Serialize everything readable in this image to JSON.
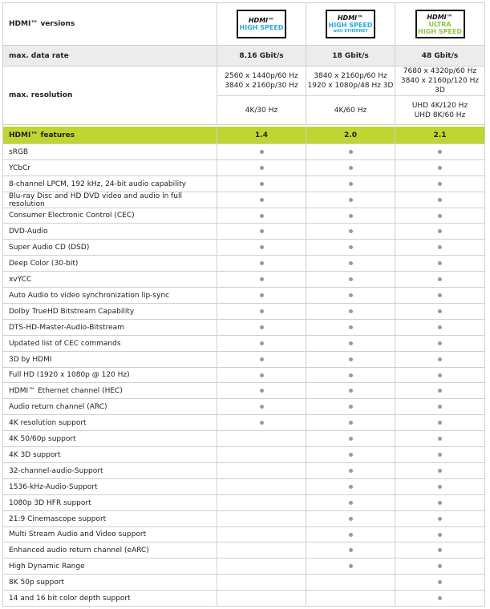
{
  "header": {
    "label": "HDMI™ versions",
    "logos": [
      {
        "brand": "HDMI™",
        "lines": [
          "HIGH SPEED"
        ]
      },
      {
        "brand": "HDMI™",
        "lines": [
          "HIGH SPEED",
          "with ETHERNET"
        ]
      },
      {
        "brand": "HDMI™",
        "lines": [
          "ULTRA",
          "HIGH SPEED"
        ]
      }
    ]
  },
  "data_rate": {
    "label": "max. data rate",
    "values": [
      "8.16 Gbit/s",
      "18 Gbit/s",
      "48 Gbit/s"
    ]
  },
  "resolution": {
    "label": "max. resolution",
    "top": [
      [
        "2560 x 1440p/60 Hz",
        "3840 x 2160p/30 Hz"
      ],
      [
        "3840 x 2160p/60 Hz",
        "1920 x 1080p/48 Hz 3D"
      ],
      [
        "7680 x 4320p/60 Hz",
        "3840 x 2160p/120 Hz 3D"
      ]
    ],
    "bottom": [
      [
        "4K/30 Hz"
      ],
      [
        "4K/60 Hz"
      ],
      [
        "UHD 4K/120 Hz",
        "UHD 8K/60 Hz"
      ]
    ]
  },
  "features_header": {
    "label": "HDMI™ features",
    "versions": [
      "1.4",
      "2.0",
      "2.1"
    ]
  },
  "features": [
    {
      "name": "sRGB",
      "support": [
        true,
        true,
        true
      ]
    },
    {
      "name": "YCbCr",
      "support": [
        true,
        true,
        true
      ]
    },
    {
      "name": "8-channel LPCM, 192 kHz, 24-bit audio capability",
      "support": [
        true,
        true,
        true
      ]
    },
    {
      "name": "Blu-ray Disc and HD DVD video and audio in full resolution",
      "support": [
        true,
        true,
        true
      ]
    },
    {
      "name": "Consumer Electronic Control (CEC)",
      "support": [
        true,
        true,
        true
      ]
    },
    {
      "name": "DVD-Audio",
      "support": [
        true,
        true,
        true
      ]
    },
    {
      "name": "Super Audio CD (DSD)",
      "support": [
        true,
        true,
        true
      ]
    },
    {
      "name": "Deep Color (30-bit)",
      "support": [
        true,
        true,
        true
      ]
    },
    {
      "name": "xvYCC",
      "support": [
        true,
        true,
        true
      ]
    },
    {
      "name": "Auto Audio to video synchronization lip-sync",
      "support": [
        true,
        true,
        true
      ]
    },
    {
      "name": "Dolby TrueHD Bitstream Capability",
      "support": [
        true,
        true,
        true
      ]
    },
    {
      "name": "DTS-HD-Master-Audio-Bitstream",
      "support": [
        true,
        true,
        true
      ]
    },
    {
      "name": "Updated list of CEC commands",
      "support": [
        true,
        true,
        true
      ]
    },
    {
      "name": "3D by HDMI",
      "support": [
        true,
        true,
        true
      ]
    },
    {
      "name": "Full HD (1920 x 1080p @ 120 Hz)",
      "support": [
        true,
        true,
        true
      ]
    },
    {
      "name": "HDMI™ Ethernet channel (HEC)",
      "support": [
        true,
        true,
        true
      ]
    },
    {
      "name": "Audio return channel (ARC)",
      "support": [
        true,
        true,
        true
      ]
    },
    {
      "name": "4K resolution support",
      "support": [
        true,
        true,
        true
      ]
    },
    {
      "name": "4K 50/60p support",
      "support": [
        false,
        true,
        true
      ]
    },
    {
      "name": "4K 3D support",
      "support": [
        false,
        true,
        true
      ]
    },
    {
      "name": "32-channel-audio-Support",
      "support": [
        false,
        true,
        true
      ]
    },
    {
      "name": "1536-kHz-Audio-Support",
      "support": [
        false,
        true,
        true
      ]
    },
    {
      "name": "1080p 3D HFR support",
      "support": [
        false,
        true,
        true
      ]
    },
    {
      "name": "21:9 Cinemascope support",
      "support": [
        false,
        true,
        true
      ]
    },
    {
      "name": "Multi Stream Audio and Video support",
      "support": [
        false,
        true,
        true
      ]
    },
    {
      "name": "Enhanced audio return channel (eARC)",
      "support": [
        false,
        true,
        true
      ]
    },
    {
      "name": "High Dynamic Range",
      "support": [
        false,
        true,
        true
      ]
    },
    {
      "name": "8K 50p support",
      "support": [
        false,
        false,
        true
      ]
    },
    {
      "name": "14 and 16 bit color depth support",
      "support": [
        false,
        false,
        true
      ]
    }
  ]
}
